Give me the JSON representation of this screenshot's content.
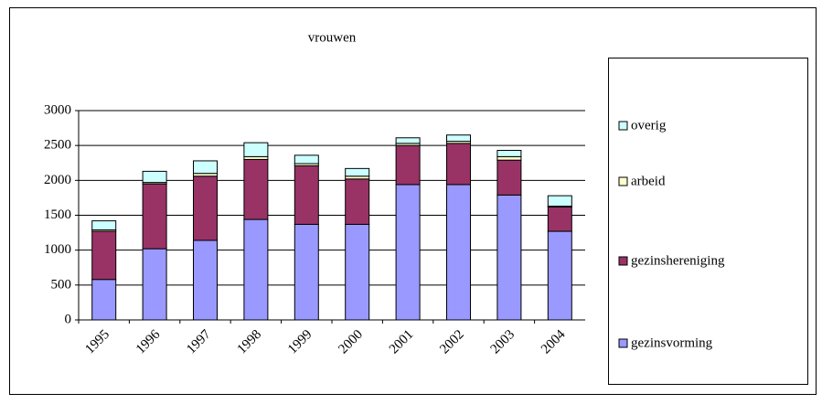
{
  "chart_data": {
    "type": "bar",
    "stacked": true,
    "title": "vrouwen",
    "categories": [
      "1995",
      "1996",
      "1997",
      "1998",
      "1999",
      "2000",
      "2001",
      "2002",
      "2003",
      "2004"
    ],
    "series": [
      {
        "name": "gezinsvorming",
        "color": "#9999ff",
        "values": [
          580,
          1020,
          1140,
          1440,
          1370,
          1370,
          1940,
          1940,
          1790,
          1270
        ]
      },
      {
        "name": "gezinshereniging",
        "color": "#993366",
        "values": [
          690,
          930,
          920,
          860,
          840,
          650,
          560,
          590,
          500,
          350
        ]
      },
      {
        "name": "arbeid",
        "color": "#ffffcc",
        "values": [
          20,
          20,
          40,
          40,
          30,
          40,
          30,
          30,
          50,
          10
        ]
      },
      {
        "name": "overig",
        "color": "#ccffff",
        "values": [
          130,
          160,
          180,
          200,
          120,
          110,
          80,
          90,
          90,
          150
        ]
      }
    ],
    "ylim": [
      0,
      3000
    ],
    "yticks": [
      0,
      500,
      1000,
      1500,
      2000,
      2500,
      3000
    ],
    "grid": true,
    "legend": "right"
  }
}
